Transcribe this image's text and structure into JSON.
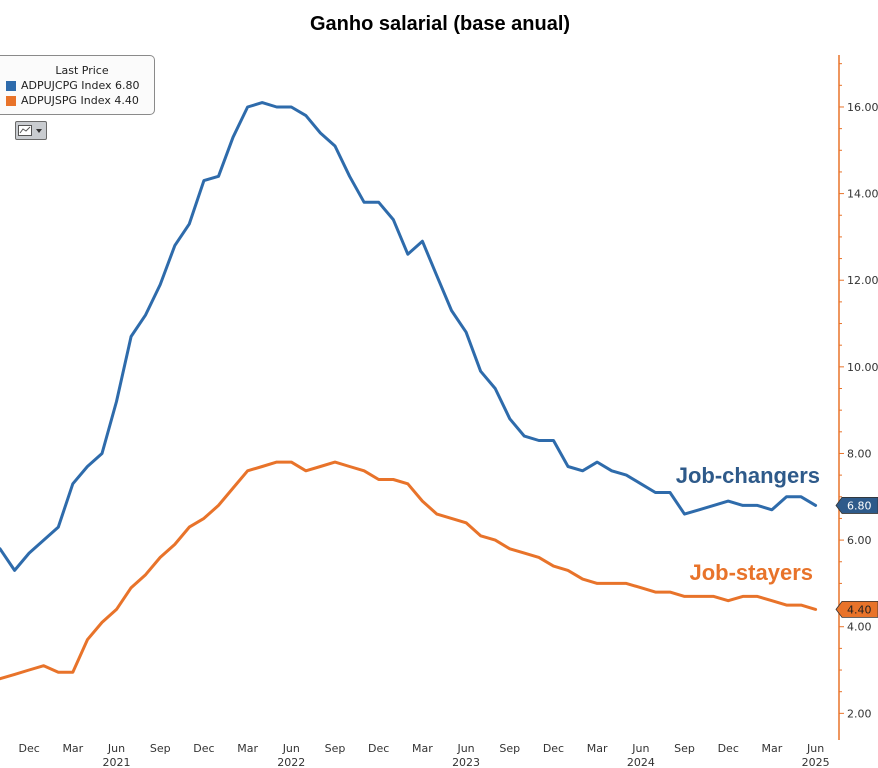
{
  "chart_data": {
    "type": "line",
    "title": "Ganho salarial (base anual)",
    "legend": {
      "header": "Last Price",
      "placement": "top-left",
      "entries": [
        {
          "label": "ADPUJCPG Index 6.80",
          "color": "#2e6bab"
        },
        {
          "label": "ADPUJSPG Index 4.40",
          "color": "#e8732a"
        }
      ]
    },
    "y_axis": {
      "side": "right",
      "ylim": [
        1.5,
        17.2
      ],
      "ticks": [
        "2.00",
        "4.00",
        "6.00",
        "8.00",
        "10.00",
        "12.00",
        "14.00",
        "16.00"
      ],
      "tick_values": [
        2,
        4,
        6,
        8,
        10,
        12,
        14,
        16
      ],
      "color": "#e8732a"
    },
    "x_axis": {
      "ticks": [
        {
          "label": "Dec",
          "year": "",
          "m": 0
        },
        {
          "label": "Mar",
          "year": "",
          "m": 3
        },
        {
          "label": "Jun",
          "year": "2021",
          "m": 6
        },
        {
          "label": "Sep",
          "year": "",
          "m": 9
        },
        {
          "label": "Dec",
          "year": "",
          "m": 12
        },
        {
          "label": "Mar",
          "year": "",
          "m": 15
        },
        {
          "label": "Jun",
          "year": "2022",
          "m": 18
        },
        {
          "label": "Sep",
          "year": "",
          "m": 21
        },
        {
          "label": "Dec",
          "year": "",
          "m": 24
        },
        {
          "label": "Mar",
          "year": "",
          "m": 27
        },
        {
          "label": "Jun",
          "year": "2023",
          "m": 30
        },
        {
          "label": "Sep",
          "year": "",
          "m": 33
        },
        {
          "label": "Dec",
          "year": "",
          "m": 36
        },
        {
          "label": "Mar",
          "year": "",
          "m": 39
        },
        {
          "label": "Jun",
          "year": "2024",
          "m": 42
        },
        {
          "label": "Sep",
          "year": "",
          "m": 45
        },
        {
          "label": "Dec",
          "year": "",
          "m": 48
        },
        {
          "label": "Mar",
          "year": "",
          "m": 51
        },
        {
          "label": "Jun",
          "year": "2025",
          "m": 54
        }
      ],
      "xlim": [
        -2,
        54.3
      ]
    },
    "grid": false,
    "series": [
      {
        "name": "Job-changers",
        "color": "#2e6bab",
        "last_value": "6.80",
        "points": [
          [
            -2,
            5.8
          ],
          [
            -1,
            5.3
          ],
          [
            0,
            5.7
          ],
          [
            1,
            6.0
          ],
          [
            2,
            6.3
          ],
          [
            3,
            7.3
          ],
          [
            4,
            7.7
          ],
          [
            5,
            8.0
          ],
          [
            6,
            9.2
          ],
          [
            7,
            10.7
          ],
          [
            8,
            11.2
          ],
          [
            9,
            11.9
          ],
          [
            10,
            12.8
          ],
          [
            11,
            13.3
          ],
          [
            12,
            14.3
          ],
          [
            13,
            14.4
          ],
          [
            14,
            15.3
          ],
          [
            15,
            16.0
          ],
          [
            16,
            16.1
          ],
          [
            17,
            16.0
          ],
          [
            18,
            16.0
          ],
          [
            19,
            15.8
          ],
          [
            20,
            15.4
          ],
          [
            21,
            15.1
          ],
          [
            22,
            14.4
          ],
          [
            23,
            13.8
          ],
          [
            24,
            13.8
          ],
          [
            25,
            13.4
          ],
          [
            26,
            12.6
          ],
          [
            27,
            12.9
          ],
          [
            28,
            12.1
          ],
          [
            29,
            11.3
          ],
          [
            30,
            10.8
          ],
          [
            31,
            9.9
          ],
          [
            32,
            9.5
          ],
          [
            33,
            8.8
          ],
          [
            34,
            8.4
          ],
          [
            35,
            8.3
          ],
          [
            36,
            8.3
          ],
          [
            37,
            7.7
          ],
          [
            38,
            7.6
          ],
          [
            39,
            7.8
          ],
          [
            40,
            7.6
          ],
          [
            41,
            7.5
          ],
          [
            42,
            7.3
          ],
          [
            43,
            7.1
          ],
          [
            44,
            7.1
          ],
          [
            45,
            6.6
          ],
          [
            46,
            6.7
          ],
          [
            47,
            6.8
          ],
          [
            48,
            6.9
          ],
          [
            49,
            6.8
          ],
          [
            50,
            6.8
          ],
          [
            51,
            6.7
          ],
          [
            52,
            7.0
          ],
          [
            53,
            7.0
          ],
          [
            54,
            6.8
          ]
        ]
      },
      {
        "name": "Job-stayers",
        "color": "#e8732a",
        "last_value": "4.40",
        "points": [
          [
            -2,
            2.8
          ],
          [
            -1,
            2.9
          ],
          [
            0,
            3.0
          ],
          [
            1,
            3.1
          ],
          [
            2,
            2.95
          ],
          [
            3,
            2.95
          ],
          [
            4,
            3.7
          ],
          [
            5,
            4.1
          ],
          [
            6,
            4.4
          ],
          [
            7,
            4.9
          ],
          [
            8,
            5.2
          ],
          [
            9,
            5.6
          ],
          [
            10,
            5.9
          ],
          [
            11,
            6.3
          ],
          [
            12,
            6.5
          ],
          [
            13,
            6.8
          ],
          [
            14,
            7.2
          ],
          [
            15,
            7.6
          ],
          [
            16,
            7.7
          ],
          [
            17,
            7.8
          ],
          [
            18,
            7.8
          ],
          [
            19,
            7.6
          ],
          [
            20,
            7.7
          ],
          [
            21,
            7.8
          ],
          [
            22,
            7.7
          ],
          [
            23,
            7.6
          ],
          [
            24,
            7.4
          ],
          [
            25,
            7.4
          ],
          [
            26,
            7.3
          ],
          [
            27,
            6.9
          ],
          [
            28,
            6.6
          ],
          [
            29,
            6.5
          ],
          [
            30,
            6.4
          ],
          [
            31,
            6.1
          ],
          [
            32,
            6.0
          ],
          [
            33,
            5.8
          ],
          [
            34,
            5.7
          ],
          [
            35,
            5.6
          ],
          [
            36,
            5.4
          ],
          [
            37,
            5.3
          ],
          [
            38,
            5.1
          ],
          [
            39,
            5.0
          ],
          [
            40,
            5.0
          ],
          [
            41,
            5.0
          ],
          [
            42,
            4.9
          ],
          [
            43,
            4.8
          ],
          [
            44,
            4.8
          ],
          [
            45,
            4.7
          ],
          [
            46,
            4.7
          ],
          [
            47,
            4.7
          ],
          [
            48,
            4.6
          ],
          [
            49,
            4.7
          ],
          [
            50,
            4.7
          ],
          [
            51,
            4.6
          ],
          [
            52,
            4.5
          ],
          [
            53,
            4.5
          ],
          [
            54,
            4.4
          ]
        ]
      }
    ]
  }
}
